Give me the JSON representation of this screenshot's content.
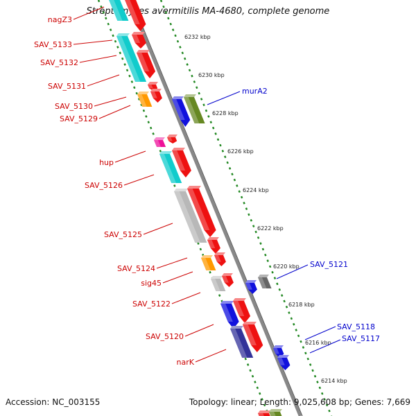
{
  "title": "Streptomyces avermitilis MA-4680, complete genome",
  "accession": "Accession: NC_003155",
  "topology": "Topology: linear; Length: 9,025,608 bp; Genes: 7,669",
  "colors": {
    "red": "#ee1111",
    "cyan": "#11cccc",
    "orange": "#ff9900",
    "magenta": "#ee1199",
    "grey": "#b8b8b8",
    "dark_grey": "#666666",
    "blue": "#1111dd",
    "navy": "#333399",
    "olive": "#668822",
    "label_red": "#cc0000",
    "label_blue": "#0000cc",
    "axis": "#888888",
    "tick": "#228822"
  },
  "kbp_labels": [
    "6232 kbp",
    "6230 kbp",
    "6228 kbp",
    "6226 kbp",
    "6224 kbp",
    "6222 kbp",
    "6220 kbp",
    "6218 kbp",
    "6216 kbp",
    "6214 kbp"
  ],
  "left_labels": [
    "nagZ3",
    "SAV_5133",
    "SAV_5132",
    "SAV_5131",
    "SAV_5130",
    "SAV_5129",
    "hup",
    "SAV_5126",
    "SAV_5125",
    "SAV_5124",
    "sig45",
    "SAV_5122",
    "SAV_5120",
    "narK"
  ],
  "right_labels": [
    "murA2",
    "SAV_5121",
    "SAV_5118",
    "SAV_5117"
  ]
}
